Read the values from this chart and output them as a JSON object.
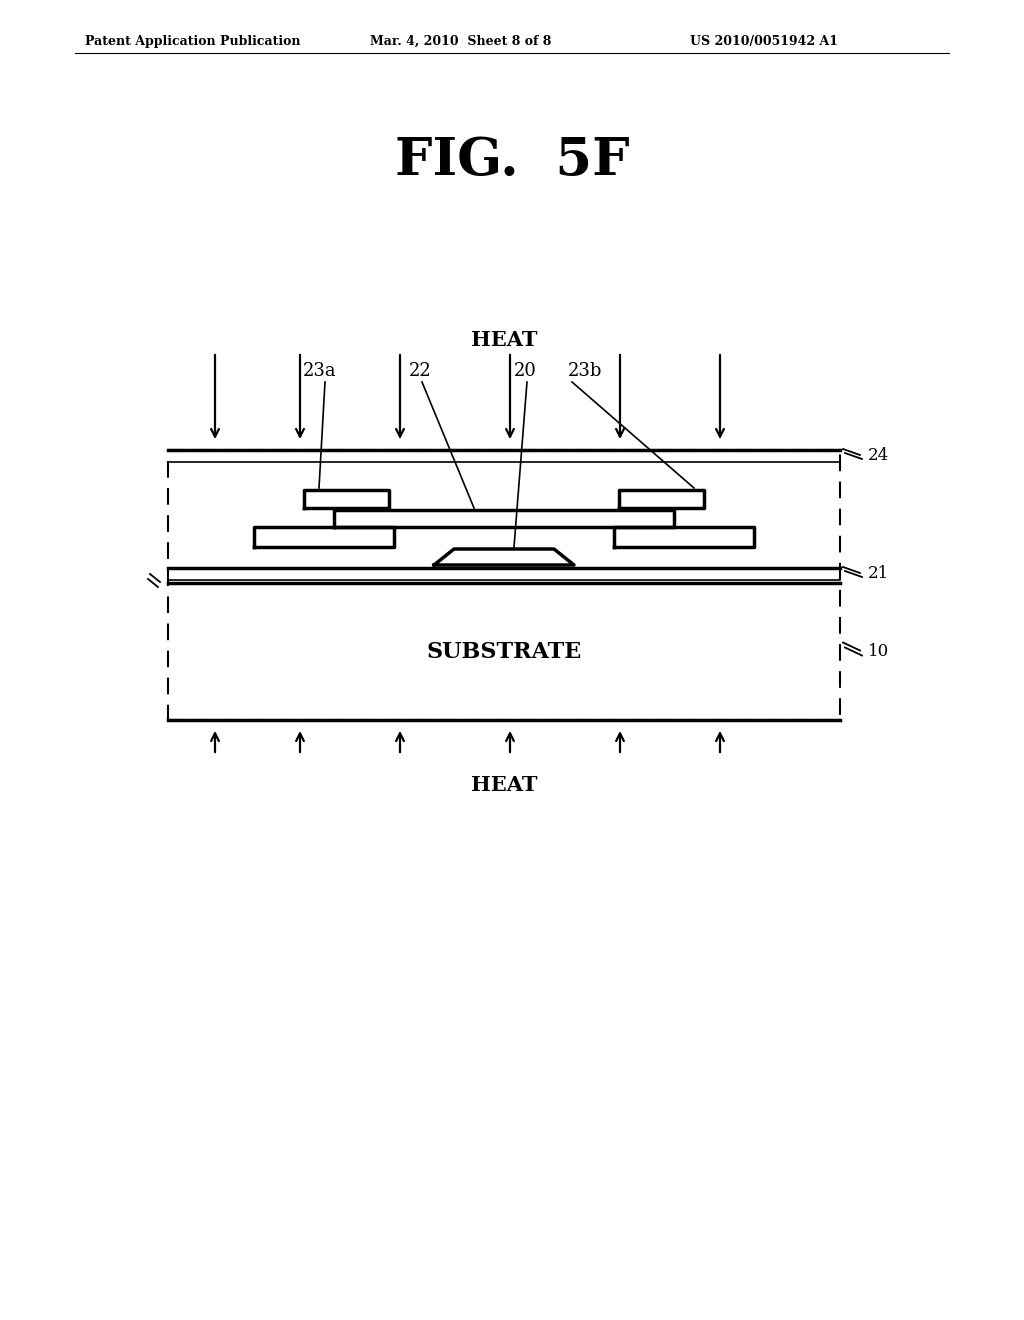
{
  "bg_color": "#ffffff",
  "title": "FIG.  5F",
  "header_left": "Patent Application Publication",
  "header_mid": "Mar. 4, 2010  Sheet 8 of 8",
  "header_right": "US 2010/0051942 A1",
  "heat_label": "HEAT",
  "substrate_label": "SUBSTRATE"
}
